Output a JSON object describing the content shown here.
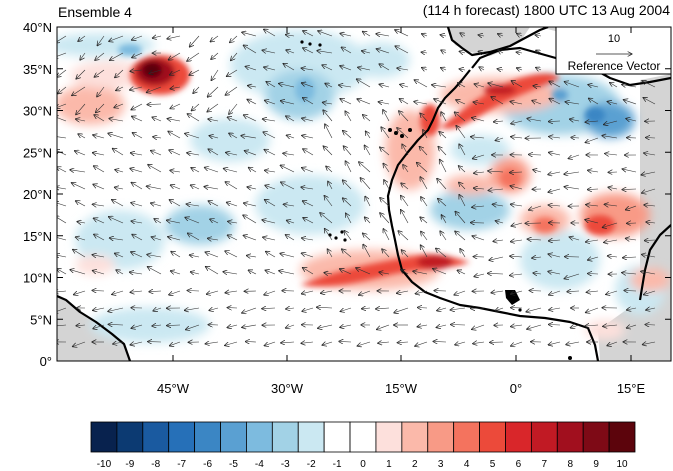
{
  "header": {
    "left_title": "Ensemble 4",
    "right_title": "(114 h forecast) 1800 UTC 13 Aug 2004"
  },
  "map": {
    "lat_labels": [
      "40°N",
      "35°N",
      "30°N",
      "25°N",
      "20°N",
      "15°N",
      "10°N",
      "5°N",
      "0°"
    ],
    "lon_labels": [
      "45°W",
      "30°W",
      "15°W",
      "0°",
      "15°E"
    ],
    "land_color": "#d4d4d4",
    "coast_color": "#000000",
    "reference_vector": {
      "value": "10",
      "label": "Reference Vector"
    }
  },
  "colorbar": {
    "labels": [
      "-10",
      "-9",
      "-8",
      "-7",
      "-6",
      "-5",
      "-4",
      "-3",
      "-2",
      "-1",
      "0",
      "1",
      "2",
      "3",
      "4",
      "5",
      "6",
      "7",
      "8",
      "9",
      "10"
    ],
    "colors": [
      "#08224e",
      "#0c3a72",
      "#1a5aa0",
      "#2670b8",
      "#3b86c4",
      "#5aa0d2",
      "#7dbbdf",
      "#a2d2e6",
      "#cbe8f2",
      "#ffffff",
      "#ffffff",
      "#fde0dc",
      "#fbb9aa",
      "#f89a86",
      "#f4735e",
      "#ec4a3a",
      "#d9262a",
      "#c11a24",
      "#a10f1e",
      "#7e0a16",
      "#5c040c"
    ]
  }
}
